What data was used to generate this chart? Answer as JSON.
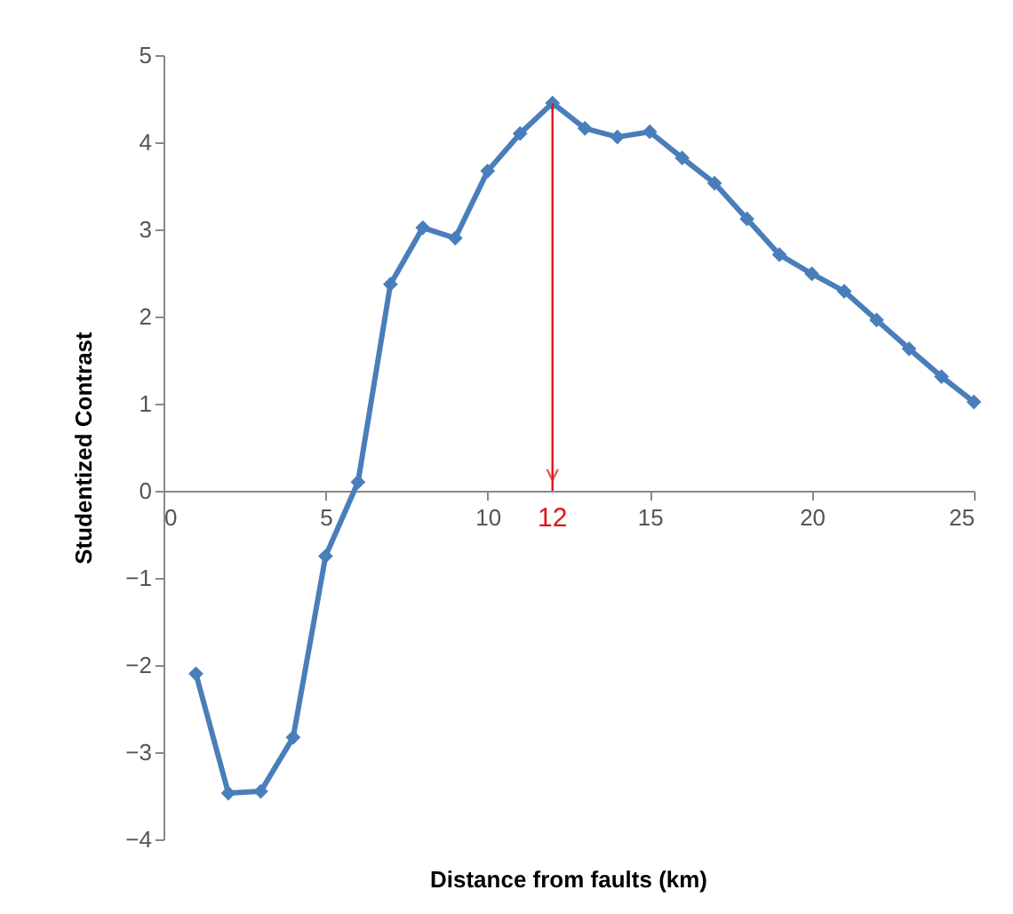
{
  "chart_data": {
    "type": "line",
    "xlabel": "Distance from faults (km)",
    "ylabel": "Studentized Contrast",
    "x": [
      1,
      2,
      3,
      4,
      5,
      6,
      7,
      8,
      9,
      10,
      11,
      12,
      13,
      14,
      15,
      16,
      17,
      18,
      19,
      20,
      21,
      22,
      23,
      24,
      25
    ],
    "values": [
      -2.1,
      -3.47,
      -3.45,
      -2.83,
      -0.75,
      0.1,
      2.37,
      3.02,
      2.9,
      3.67,
      4.1,
      4.45,
      4.16,
      4.06,
      4.12,
      3.82,
      3.53,
      3.12,
      2.71,
      2.49,
      2.29,
      1.96,
      1.63,
      1.31,
      1.02
    ],
    "color": "#4a7ebb",
    "marker": "diamond",
    "xlim": [
      0,
      25
    ],
    "xticks": [
      0,
      5,
      10,
      15,
      20,
      25
    ],
    "ylim": [
      -4,
      5
    ],
    "yticks": [
      -4,
      -3,
      -2,
      -1,
      0,
      1,
      2,
      3,
      4,
      5
    ],
    "annotations": [
      {
        "text": "12",
        "x": 12,
        "y": 4.45
      }
    ]
  }
}
